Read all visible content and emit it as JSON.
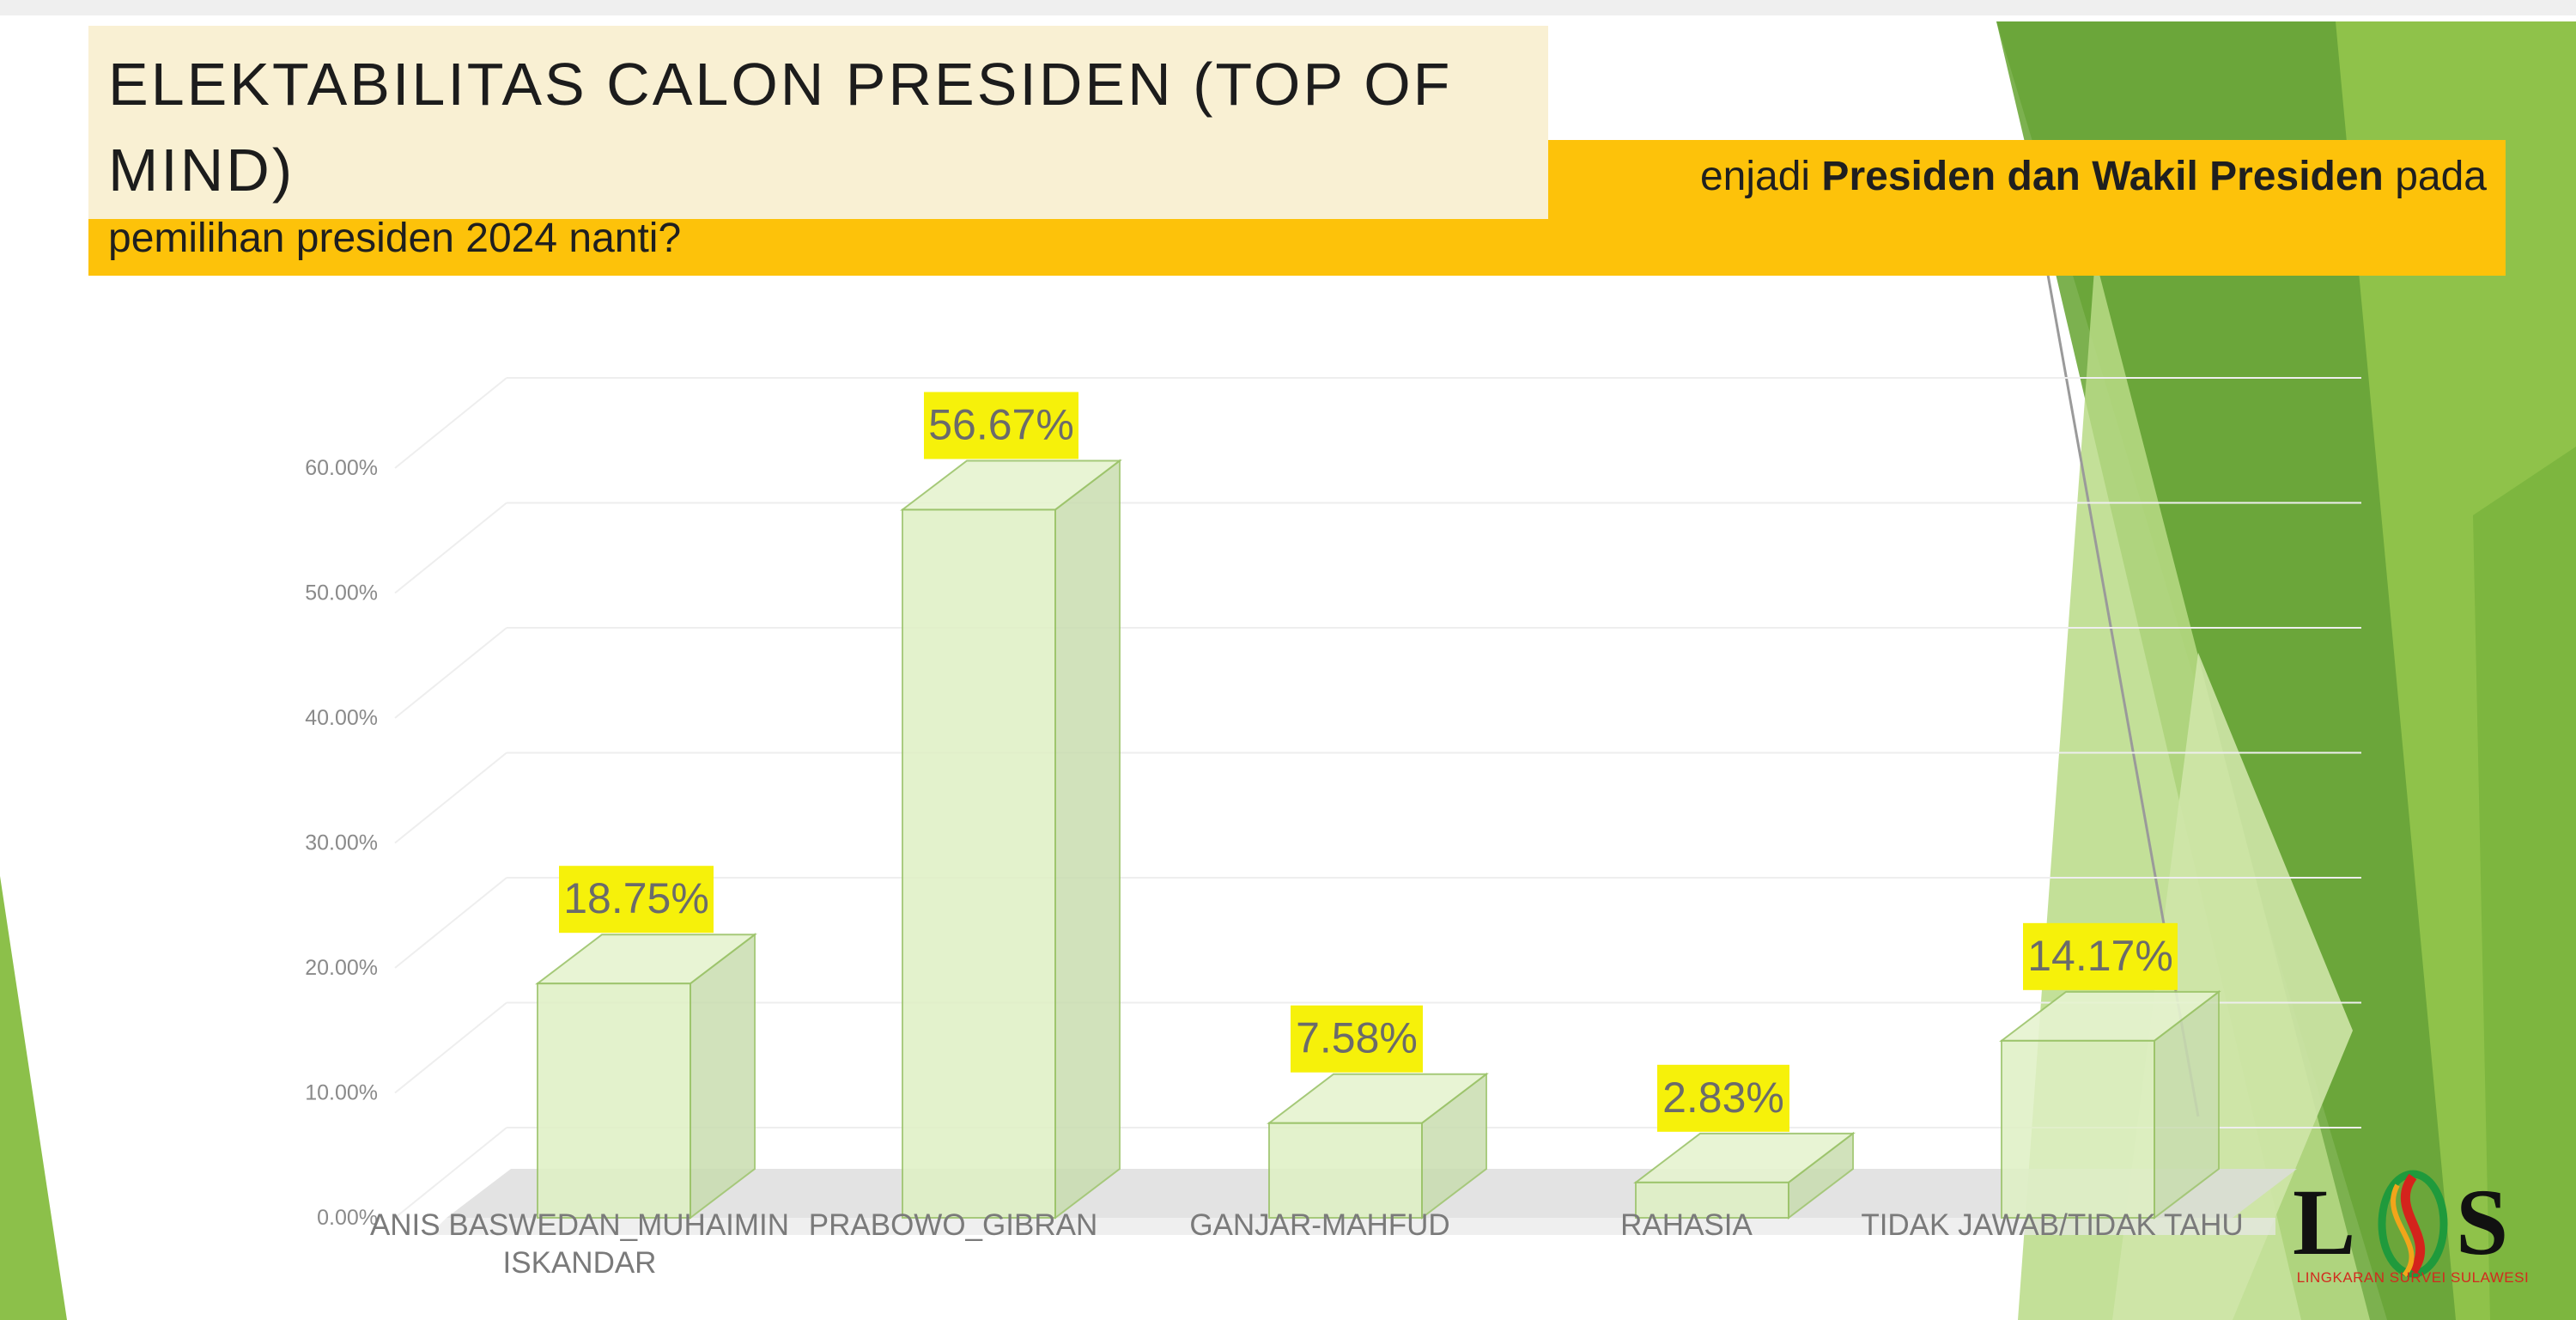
{
  "title": "ELEKTABILITAS CALON PRESIDEN (TOP OF MIND)",
  "question": {
    "line1_start": "enjadi ",
    "line1_bold": "Presiden dan Wakil Presiden",
    "line1_end": " pada",
    "line2": "pemilihan presiden 2024 nanti?"
  },
  "logo": {
    "letters": [
      "L",
      "S",
      "S"
    ],
    "caption": "LINGKARAN SURVEI SULAWESI"
  },
  "colors": {
    "band": "#fdc20a",
    "title_bg": "#f9f0d3",
    "bar_front": "#dff0c4",
    "bar_side": "#c9ddb0",
    "bar_top": "#e6f3d0",
    "bar_edge": "#9cc46a",
    "label_bg": "#f6f10a",
    "green_dark": "#4e8a2a",
    "green_mid": "#6aa83a",
    "green_light": "#9ccc54"
  },
  "chart_data": {
    "type": "bar",
    "style": "3d-column",
    "categories": [
      [
        "ANIS BASWEDAN_MUHAIMIN",
        "ISKANDAR"
      ],
      [
        "PRABOWO_GIBRAN"
      ],
      [
        "GANJAR-MAHFUD"
      ],
      [
        "RAHASIA"
      ],
      [
        "TIDAK JAWAB/TIDAK TAHU"
      ]
    ],
    "values": [
      18.75,
      56.67,
      7.58,
      2.83,
      14.17
    ],
    "value_labels": [
      "18.75%",
      "56.67%",
      "7.58%",
      "2.83%",
      "14.17%"
    ],
    "y_ticks": [
      "0.00%",
      "10.00%",
      "20.00%",
      "30.00%",
      "40.00%",
      "50.00%",
      "60.00%"
    ],
    "ylim": [
      0,
      60
    ],
    "grid": true,
    "legend": "none"
  }
}
